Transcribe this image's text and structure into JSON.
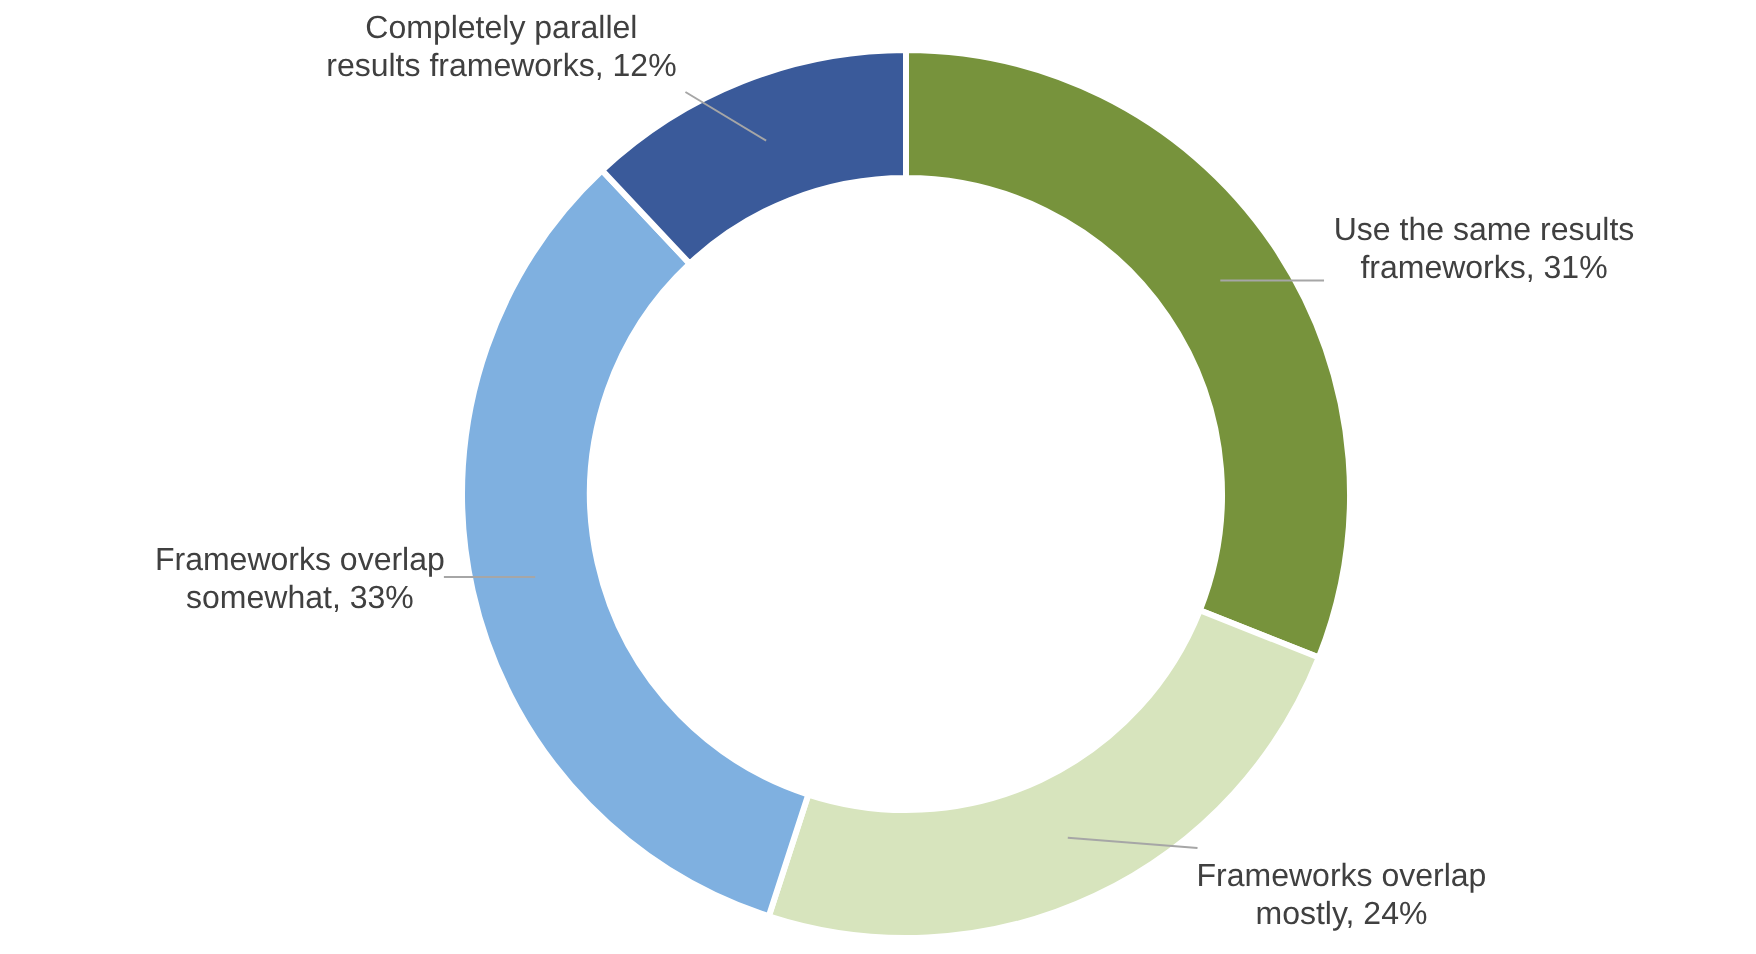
{
  "chart_data": {
    "type": "donut",
    "categories": [
      "Use the same results frameworks",
      "Frameworks overlap mostly",
      "Frameworks overlap somewhat",
      "Completely parallel results frameworks"
    ],
    "values": [
      31,
      24,
      33,
      12
    ],
    "colors": [
      "#77933c",
      "#d7e4bd",
      "#7fb0e0",
      "#3a5a9a"
    ],
    "value_labels": [
      "31%",
      "24%",
      "33%",
      "12%"
    ],
    "legend": false
  }
}
